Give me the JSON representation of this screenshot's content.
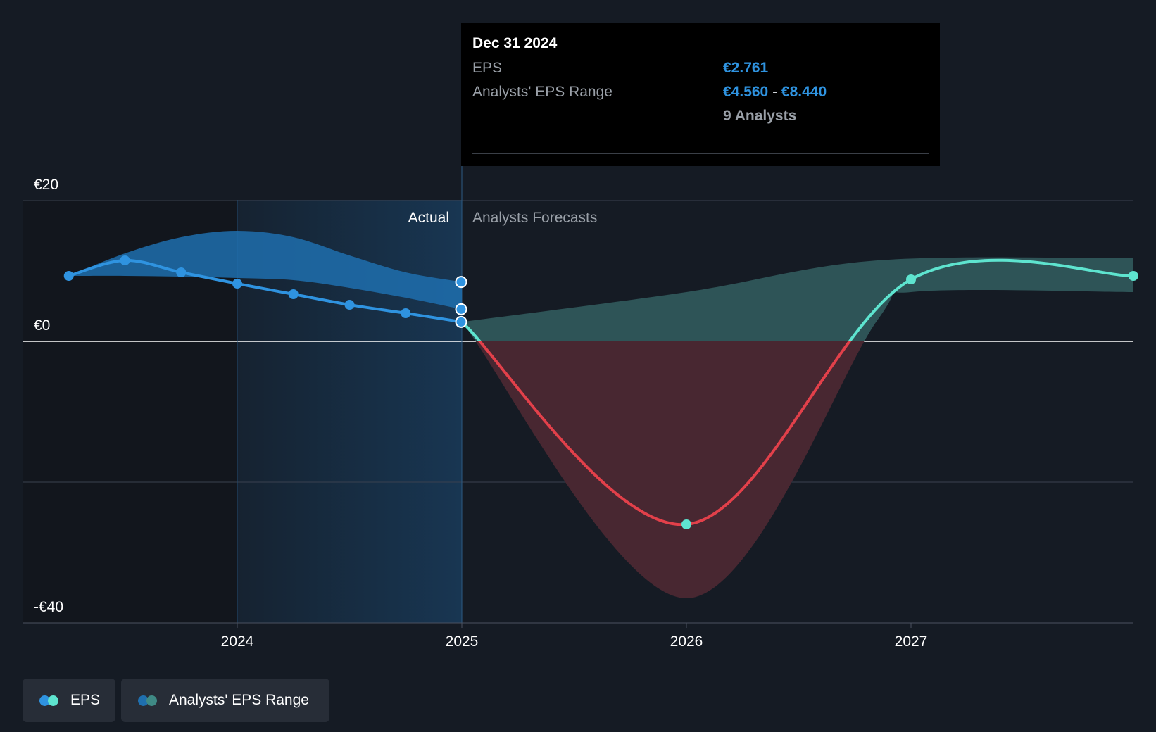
{
  "chart_data": {
    "type": "line",
    "y_axis": {
      "ticks": [
        "€20",
        "€0",
        "-€40"
      ],
      "min": -40,
      "max": 20,
      "gridlines": [
        20,
        0,
        -20,
        -40
      ]
    },
    "x_axis": {
      "ticks": [
        "2024",
        "2025",
        "2026",
        "2027"
      ],
      "range": [
        2023.2,
        2027.93
      ]
    },
    "divider_labels": {
      "actual": "Actual",
      "forecast": "Analysts Forecasts"
    },
    "series": [
      {
        "name": "EPS",
        "points": [
          [
            2023.25,
            9.3
          ],
          [
            2023.5,
            11.5
          ],
          [
            2023.75,
            9.8
          ],
          [
            2024.0,
            8.2
          ],
          [
            2024.25,
            6.7
          ],
          [
            2024.5,
            5.2
          ],
          [
            2024.75,
            4.0
          ],
          [
            2025.0,
            2.761
          ]
        ]
      },
      {
        "name": "EPS forecast",
        "points": [
          [
            2025.0,
            2.761
          ],
          [
            2026.0,
            -26.0
          ],
          [
            2027.0,
            8.8
          ],
          [
            2027.99,
            9.3
          ]
        ]
      }
    ],
    "range_past": {
      "upper": [
        [
          2023.25,
          9.3
        ],
        [
          2023.5,
          12.5
        ],
        [
          2023.75,
          14.8
        ],
        [
          2024.0,
          15.7
        ],
        [
          2024.25,
          14.8
        ],
        [
          2024.5,
          12.2
        ],
        [
          2024.75,
          9.8
        ],
        [
          2025.0,
          8.44
        ]
      ],
      "lower": [
        [
          2023.25,
          9.3
        ],
        [
          2023.5,
          9.3
        ],
        [
          2023.75,
          9.2
        ],
        [
          2024.0,
          9.0
        ],
        [
          2024.25,
          8.7
        ],
        [
          2024.5,
          7.6
        ],
        [
          2024.75,
          6.2
        ],
        [
          2025.0,
          4.56
        ]
      ]
    },
    "range_forecast": {
      "upper": [
        [
          2025.0,
          2.761
        ],
        [
          2026.0,
          7.0
        ],
        [
          2026.85,
          11.5
        ],
        [
          2027.99,
          11.8
        ]
      ],
      "lower": [
        [
          2025.0,
          2.761
        ],
        [
          2026.0,
          -36.5
        ],
        [
          2026.85,
          3.0
        ],
        [
          2027.0,
          7.0
        ],
        [
          2027.99,
          7.0
        ]
      ]
    },
    "tooltip": {
      "date": "Dec 31 2024",
      "eps_label": "EPS",
      "eps_value": "€2.761",
      "range_label": "Analysts' EPS Range",
      "range_low": "€4.560",
      "range_sep": "-",
      "range_high": "€8.440",
      "analysts": "9 Analysts"
    },
    "legend": [
      "EPS",
      "Analysts' EPS Range"
    ],
    "colors": {
      "background": "#151b24",
      "eps_actual": "#2f93e0",
      "eps_forecast_positive": "#5ee4cf",
      "eps_forecast_negative": "#e2404a",
      "range_past": "#1f6fae",
      "range_forecast_positive": "#2e5457",
      "range_forecast_negative": "#482731"
    }
  }
}
